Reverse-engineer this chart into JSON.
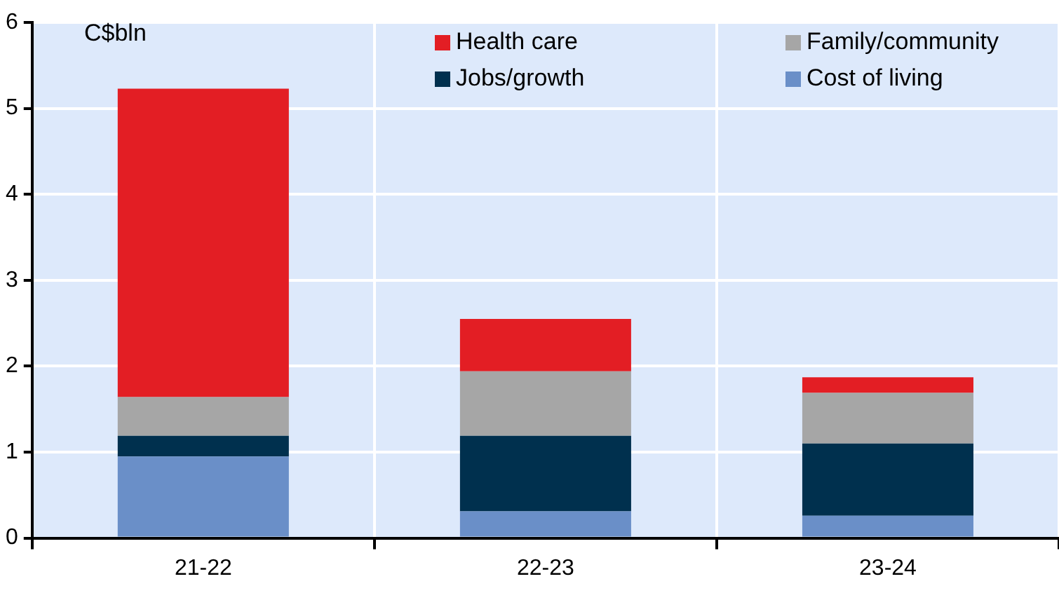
{
  "chart_data": {
    "type": "bar",
    "ylabel": "C$bln",
    "categories": [
      "21-22",
      "22-23",
      "23-24"
    ],
    "stacked": true,
    "ylim": [
      0,
      6
    ],
    "yticks": [
      0,
      1,
      2,
      3,
      4,
      5,
      6
    ],
    "grid": true,
    "legend": "top",
    "series": [
      {
        "name": "Cost of living",
        "color": "#6a8fc8",
        "values": [
          0.95,
          0.31,
          0.26
        ]
      },
      {
        "name": "Jobs/growth",
        "color": "#00304e",
        "values": [
          0.24,
          0.88,
          0.84
        ]
      },
      {
        "name": "Family/community",
        "color": "#a6a6a6",
        "values": [
          0.45,
          0.75,
          0.59
        ]
      },
      {
        "name": "Health care",
        "color": "#e31e24",
        "values": [
          3.59,
          0.61,
          0.18
        ]
      }
    ]
  }
}
